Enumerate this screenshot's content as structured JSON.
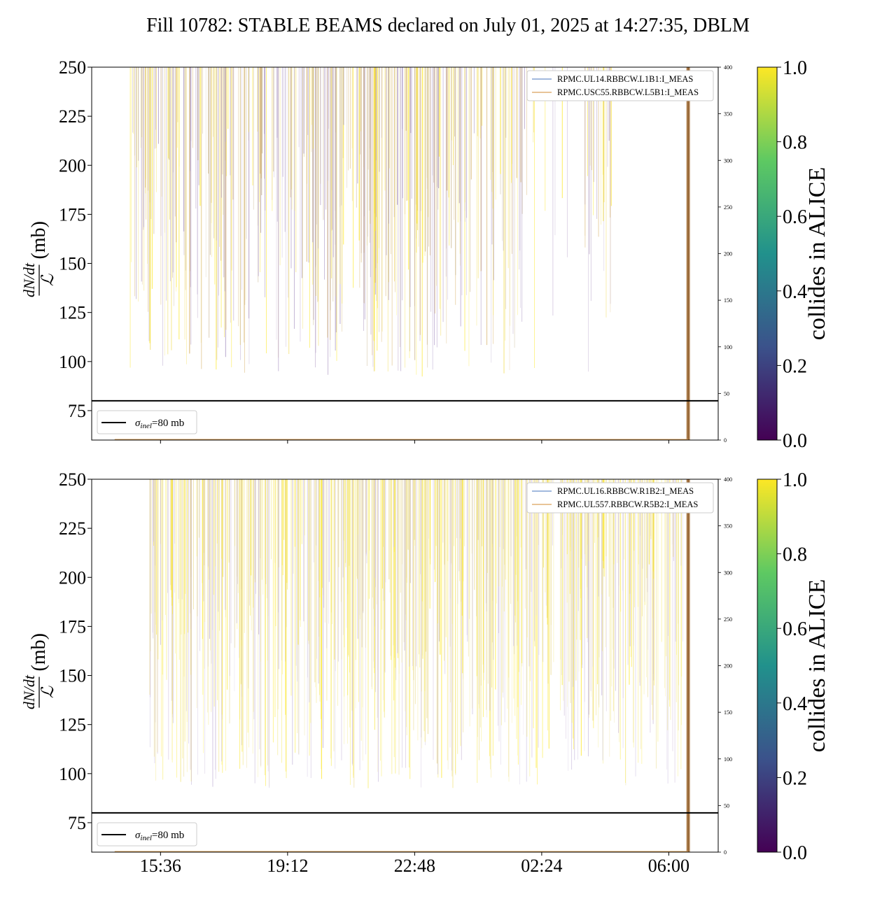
{
  "title": "Fill 10782: STABLE BEAMS declared on July 01, 2025 at 14:27:35, DBLM",
  "colors": {
    "reference_line": "#000000",
    "beam1_trace": "#6a8fc9",
    "beam2_trace": "#d9a15a",
    "dump_marker": "#a0672a",
    "colormap": [
      "#440154",
      "#3b528b",
      "#21918c",
      "#5ec962",
      "#fde725"
    ]
  },
  "chart_data": [
    {
      "type": "line",
      "panel": "top",
      "ylabel_numerator": "dN/dt",
      "ylabel_denominator": "ℒ",
      "ylabel_unit": "(mb)",
      "ylim": [
        60,
        250
      ],
      "yticks": [
        75,
        100,
        125,
        150,
        175,
        200,
        225,
        250
      ],
      "y2lim": [
        0,
        400
      ],
      "y2ticks": [
        0,
        50,
        100,
        150,
        200,
        250,
        300,
        350,
        400
      ],
      "x_tick_labels": [
        "15:36",
        "19:12",
        "22:48",
        "02:24",
        "06:00"
      ],
      "xlim_hours": [
        13.65,
        31.4
      ],
      "x_tick_hours": [
        15.6,
        19.2,
        22.8,
        26.4,
        30.0
      ],
      "reference_line": {
        "value": 80,
        "legend": "σinel=80 mb",
        "legend_sym": "σ",
        "legend_sub": "inel",
        "legend_rest": "=80 mb"
      },
      "dump_hour": 30.55,
      "legend_placement": "upper-right",
      "series": [
        {
          "name": "RPMC.UL14.RBBCW.L1B1:I_MEAS",
          "color": "#6a8fc9"
        },
        {
          "name": "RPMC.USC55.RBBCW.L5B1:I_MEAS",
          "color": "#d9a15a"
        }
      ],
      "grid": false
    },
    {
      "type": "line",
      "panel": "bottom",
      "ylabel_numerator": "dN/dt",
      "ylabel_denominator": "ℒ",
      "ylabel_unit": "(mb)",
      "ylim": [
        60,
        250
      ],
      "yticks": [
        75,
        100,
        125,
        150,
        175,
        200,
        225,
        250
      ],
      "y2lim": [
        0,
        400
      ],
      "y2ticks": [
        0,
        50,
        100,
        150,
        200,
        250,
        300,
        350,
        400
      ],
      "x_tick_labels": [
        "15:36",
        "19:12",
        "22:48",
        "02:24",
        "06:00"
      ],
      "xlim_hours": [
        13.65,
        31.4
      ],
      "x_tick_hours": [
        15.6,
        19.2,
        22.8,
        26.4,
        30.0
      ],
      "reference_line": {
        "value": 80,
        "legend": "σinel=80 mb",
        "legend_sym": "σ",
        "legend_sub": "inel",
        "legend_rest": "=80 mb"
      },
      "dump_hour": 30.55,
      "legend_placement": "upper-right",
      "series": [
        {
          "name": "RPMC.UL16.RBBCW.R1B2:I_MEAS",
          "color": "#6a8fc9"
        },
        {
          "name": "RPMC.UL557.RBBCW.R5B2:I_MEAS",
          "color": "#d9a15a"
        }
      ],
      "grid": false
    }
  ],
  "colorbar": {
    "label": "collides in ALICE",
    "range": [
      0.0,
      1.0
    ],
    "ticks": [
      "0.0",
      "0.2",
      "0.4",
      "0.6",
      "0.8",
      "1.0"
    ]
  }
}
